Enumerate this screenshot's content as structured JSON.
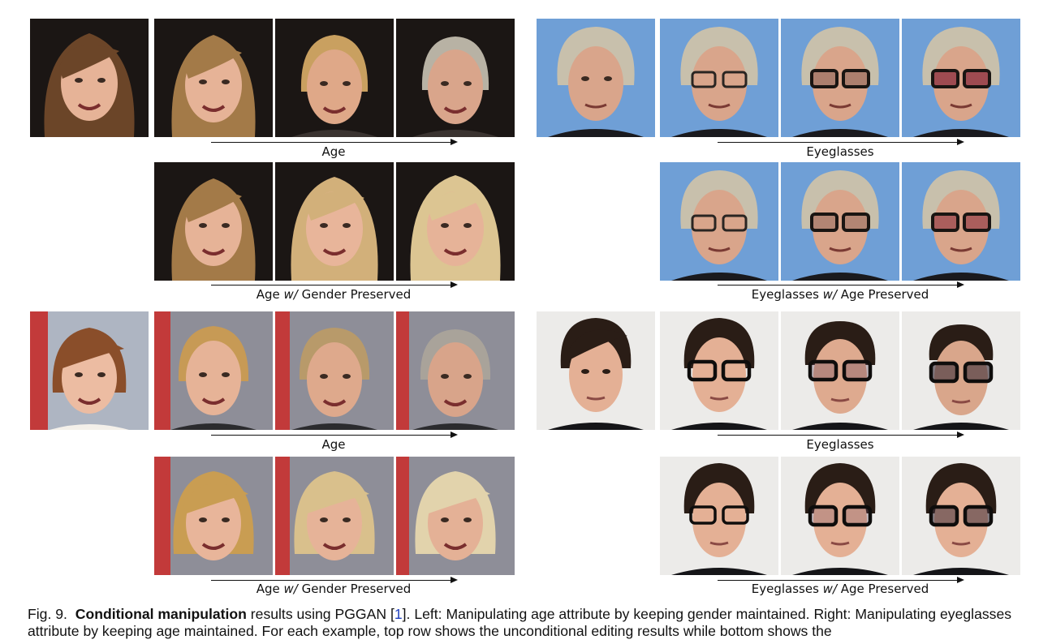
{
  "figure": {
    "panels": [
      {
        "row_label_parts": [
          "Age",
          "",
          ""
        ]
      },
      {
        "row_label_parts": [
          "Age ",
          "w/",
          " Gender Preserved"
        ]
      },
      {
        "row_label_parts": [
          "Eyeglasses",
          "",
          ""
        ]
      },
      {
        "row_label_parts": [
          "Eyeglasses ",
          "w/",
          " Age Preserved"
        ]
      }
    ],
    "labels": {
      "age": "Age",
      "age_w_prefix": "Age ",
      "w": "w/",
      "gender_suffix": " Gender Preserved",
      "eyeglasses": "Eyeglasses",
      "eyeglasses_w_prefix": "Eyeglasses ",
      "age_suffix": " Age Preserved"
    }
  },
  "caption": {
    "fig_no": "Fig. 9.",
    "title": "Conditional manipulation",
    "text1": " results using PGGAN [",
    "ref": "1",
    "text2": "]. Left: Manipulating age attribute by keeping gender maintained. Right: Manipulating eyeglasses attribute by keeping age maintained. For each example, top row shows the unconditional editing results while bottom shows the"
  },
  "colors": {
    "hair_blonde": "#c9a060",
    "hair_brown": "#6b4528",
    "hair_dark": "#2a1d16",
    "hair_silver": "#b8b2a4",
    "skin": "#e6b397",
    "bg_blue": "#6f9fd6",
    "bg_dark": "#1b1614",
    "bg_light": "#ecebe9",
    "ref_blue": "#1f3fbf"
  }
}
